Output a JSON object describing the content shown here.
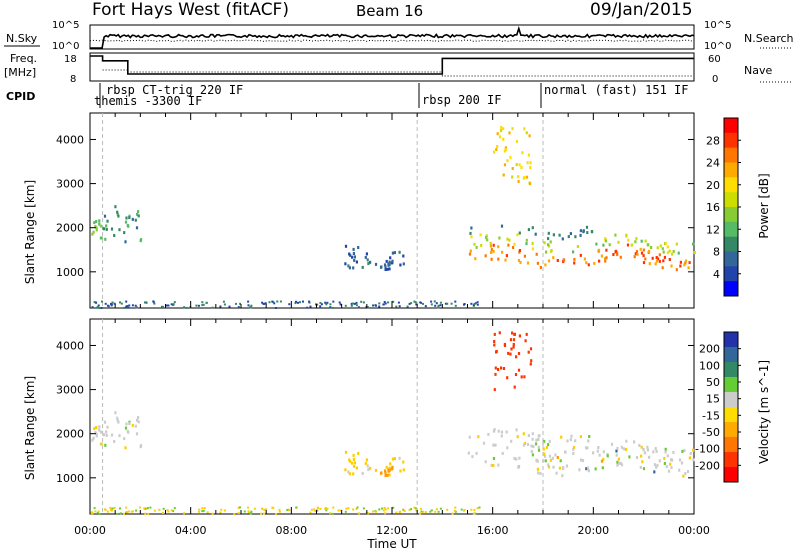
{
  "header": {
    "station": "Fort Hays West (fitACF)",
    "beam": "Beam 16",
    "date": "09/Jan/2015"
  },
  "top_panels": {
    "nsky_label": "N.Sky",
    "nsearch_label": "N.Search",
    "noise_ticks_left": [
      "10^5",
      "10^0"
    ],
    "noise_ticks_right": [
      "10^5",
      "10^0"
    ],
    "freq_label": "Freq.",
    "freq_unit": "[MHz]",
    "freq_ticks": [
      "18",
      "8"
    ],
    "nave_ticks": [
      "60",
      "0"
    ],
    "nave_label": "Nave",
    "cpid_label": "CPID",
    "cpid_segments": [
      {
        "label": "rbsp CT-trig 220 IF",
        "start_h": 0.5
      },
      {
        "label": "themis -3300 IF",
        "start_h": 0.5
      },
      {
        "label": "rbsp 200 IF",
        "start_h": 13.0
      },
      {
        "label": "normal (fast) 151 IF",
        "start_h": 18.0
      }
    ]
  },
  "power_colorbar": {
    "label": "Power [dB]",
    "ticks": [
      "28",
      "24",
      "20",
      "16",
      "12",
      "8",
      "4"
    ],
    "colors": [
      "#ff0000",
      "#ff3300",
      "#ff7700",
      "#ffaa00",
      "#ffdd00",
      "#ccdd00",
      "#88cc33",
      "#55bb66",
      "#338866",
      "#336699",
      "#2244aa",
      "#0000ff"
    ]
  },
  "velocity_colorbar": {
    "label": "Velocity [m s^-1]",
    "ticks": [
      "200",
      "100",
      "50",
      "15",
      "-15",
      "-50",
      "-100",
      "-200"
    ],
    "colors": [
      "#2233aa",
      "#336699",
      "#338866",
      "#66cc33",
      "#cccccc",
      "#ffdd00",
      "#ffaa00",
      "#ff7700",
      "#ff3300",
      "#ff0000"
    ]
  },
  "range_axis": {
    "label": "Slant Range [km]",
    "ticks": [
      "4000",
      "3000",
      "2000",
      "1000"
    ]
  },
  "time_axis": {
    "label": "Time UT",
    "ticks": [
      "00:00",
      "04:00",
      "08:00",
      "12:00",
      "16:00",
      "20:00",
      "00:00"
    ]
  },
  "chart_data": {
    "type": "heatmap",
    "title": "Fort Hays West (fitACF)",
    "xlabel": "Time UT",
    "ylabel": "Slant Range [km]",
    "xlim_hours": [
      0,
      24
    ],
    "ylim_km": [
      180,
      4600
    ],
    "cpid_boundaries_h": [
      0.5,
      13.0,
      18.0
    ],
    "freq_steps": [
      {
        "from_h": 0.0,
        "to_h": 0.5,
        "mhz": 18
      },
      {
        "from_h": 0.5,
        "to_h": 1.5,
        "mhz": 16
      },
      {
        "from_h": 1.5,
        "to_h": 14.0,
        "mhz": 10.5
      },
      {
        "from_h": 14.0,
        "to_h": 24.0,
        "mhz": 17
      }
    ],
    "echo_regions": [
      {
        "from_h": 0.0,
        "to_h": 0.5,
        "range_km": [
          1750,
          2200
        ],
        "power_db": 12,
        "velocity": 0
      },
      {
        "from_h": 0.5,
        "to_h": 2.0,
        "range_km": [
          1650,
          2500
        ],
        "power_db": 8,
        "velocity": 0
      },
      {
        "from_h": 10.0,
        "to_h": 12.5,
        "range_km": [
          1050,
          1600
        ],
        "power_db": 4,
        "velocity": -30
      },
      {
        "from_h": 11.5,
        "to_h": 12.0,
        "range_km": [
          1050,
          1300
        ],
        "power_db": 4,
        "velocity": -80
      },
      {
        "from_h": 15.0,
        "to_h": 24.0,
        "range_km": [
          1100,
          2300
        ],
        "power_db": 20,
        "velocity": 0
      },
      {
        "from_h": 16.0,
        "to_h": 17.5,
        "range_km": [
          3000,
          4300
        ],
        "power_db": 20,
        "velocity": -150
      }
    ],
    "ground_scatter_band_km": [
      180,
      330
    ]
  }
}
